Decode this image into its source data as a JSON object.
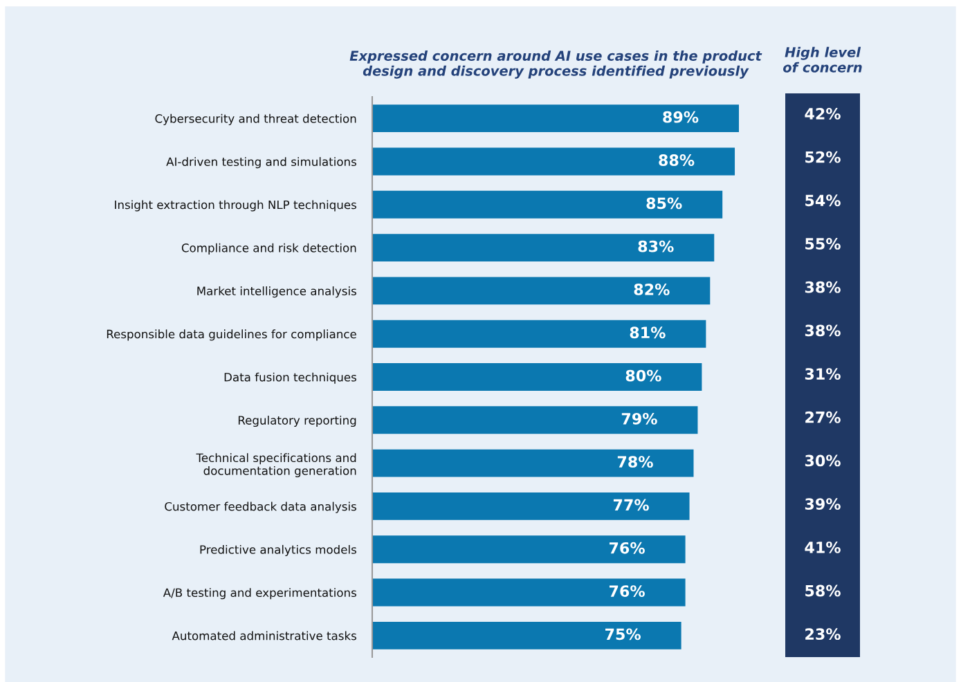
{
  "chart_data": [
    {
      "type": "bar",
      "orientation": "horizontal",
      "title": "Expressed concern around AI use cases in the product\ndesign and discovery process identified previously",
      "categories": [
        "Cybersecurity and threat detection",
        "AI-driven testing and simulations",
        "Insight extraction through NLP techniques",
        "Compliance and risk detection",
        "Market intelligence analysis",
        "Responsible data guidelines for compliance",
        "Data fusion techniques",
        "Regulatory reporting",
        "Technical specifications and\ndocumentation generation",
        "Customer feedback data analysis",
        "Predictive analytics models",
        "A/B testing and experimentations",
        "Automated administrative tasks"
      ],
      "values": [
        89,
        88,
        85,
        83,
        82,
        81,
        80,
        79,
        78,
        77,
        76,
        76,
        75
      ],
      "value_labels": [
        "89%",
        "88%",
        "85%",
        "83%",
        "82%",
        "81%",
        "80%",
        "79%",
        "78%",
        "77%",
        "76%",
        "76%",
        "75%"
      ],
      "color": "#0b78b0",
      "grid": false
    },
    {
      "type": "other",
      "title": "High level\nof concern",
      "categories": [
        null,
        null,
        null,
        null,
        null,
        null,
        null,
        null,
        null,
        null,
        null,
        null,
        null
      ],
      "values": [
        42,
        52,
        54,
        55,
        38,
        38,
        31,
        27,
        30,
        39,
        41,
        58,
        23
      ],
      "value_labels": [
        "42%",
        "52%",
        "54%",
        "55%",
        "38%",
        "38%",
        "31%",
        "27%",
        "30%",
        "39%",
        "41%",
        "58%",
        "23%"
      ],
      "color": "#1f3864"
    }
  ]
}
